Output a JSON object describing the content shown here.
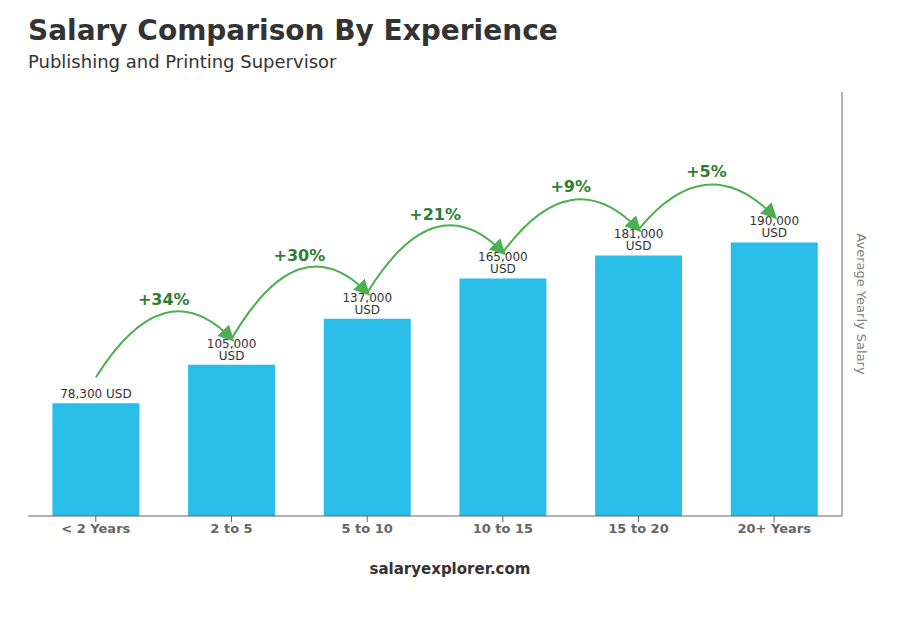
{
  "chart_data": {
    "type": "bar",
    "title": "Salary Comparison By Experience",
    "subtitle": "Publishing and Printing Supervisor",
    "categories": [
      "< 2 Years",
      "2 to 5",
      "5 to 10",
      "10 to 15",
      "15 to 20",
      "20+ Years"
    ],
    "values": [
      78300,
      105000,
      137000,
      165000,
      181000,
      190000
    ],
    "value_labels": [
      "78,300 USD",
      "105,000 USD",
      "137,000 USD",
      "165,000 USD",
      "181,000 USD",
      "190,000 USD"
    ],
    "data_labels": true,
    "color": "#29bde8",
    "ylabel": "Average Yearly Salary",
    "ylim": [
      0,
      294500
    ],
    "tick_labels": "x",
    "annotations": [
      "+34%",
      "+30%",
      "+21%",
      "+9%",
      "+5%"
    ],
    "footer": "salaryexplorer.com"
  }
}
